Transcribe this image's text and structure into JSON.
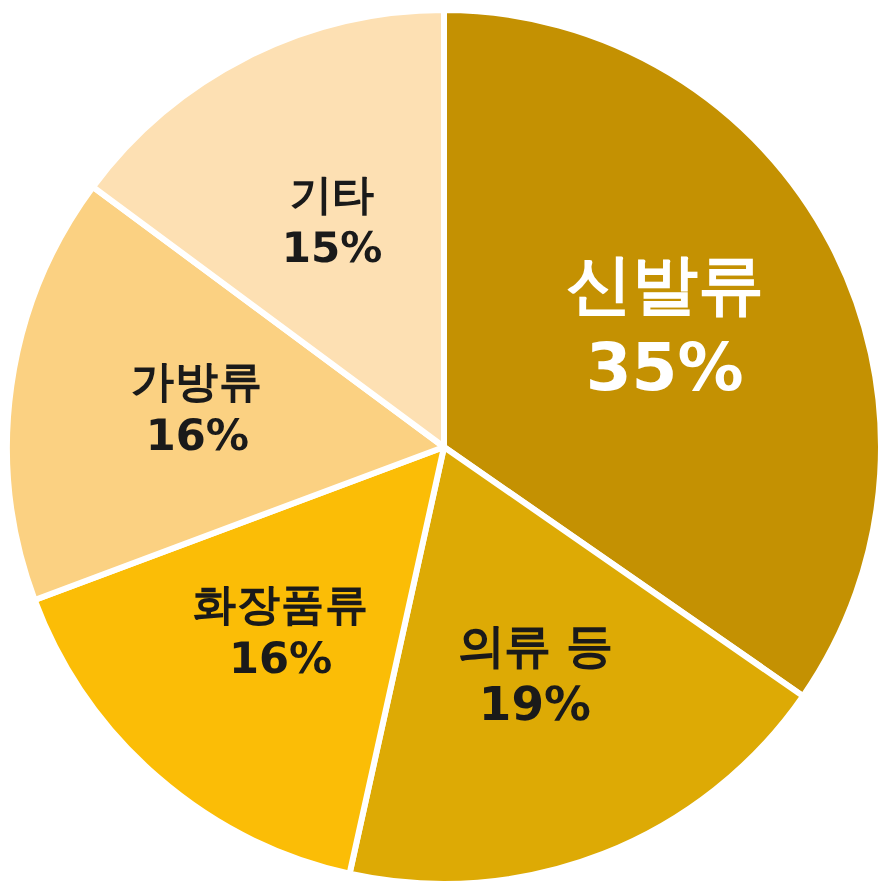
{
  "chart_data": {
    "type": "pie",
    "categories": [
      "신발류",
      "의류 등",
      "화장품류",
      "가방류",
      "기타"
    ],
    "values": [
      35,
      19,
      16,
      16,
      15
    ],
    "value_labels": [
      "35%",
      "19%",
      "16%",
      "16%",
      "15%"
    ],
    "colors": [
      "#c49102",
      "#ddaa05",
      "#fbbd06",
      "#fbd182",
      "#fde0b3"
    ],
    "legend": false
  }
}
